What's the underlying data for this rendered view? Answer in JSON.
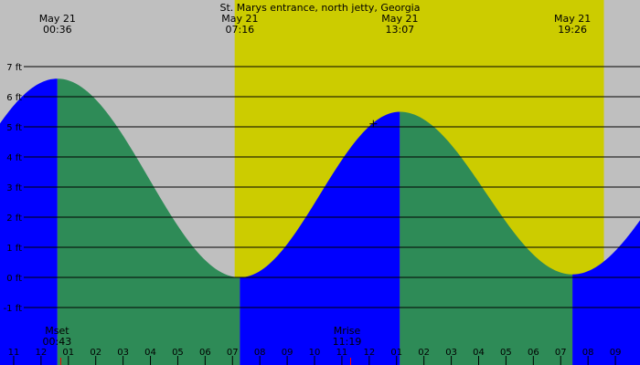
{
  "chart_data": {
    "type": "area",
    "title": "St. Marys entrance, north jetty, Georgia",
    "unit": "ft",
    "yticks": [
      -1,
      0,
      1,
      2,
      3,
      4,
      5,
      6,
      7
    ],
    "ytick_labels": [
      "-1 ft",
      "0 ft",
      "1 ft",
      "2 ft",
      "3 ft",
      "4 ft",
      "5 ft",
      "6 ft",
      "7 ft"
    ],
    "ylim": [
      -1.5,
      7.5
    ],
    "x_range_hours": [
      -1.5,
      21.9
    ],
    "hour_ticks": [
      {
        "h": -1,
        "label": "11"
      },
      {
        "h": 0,
        "label": "12"
      },
      {
        "h": 1,
        "label": "01"
      },
      {
        "h": 2,
        "label": "02"
      },
      {
        "h": 3,
        "label": "03"
      },
      {
        "h": 4,
        "label": "04"
      },
      {
        "h": 5,
        "label": "05"
      },
      {
        "h": 6,
        "label": "06"
      },
      {
        "h": 7,
        "label": "07"
      },
      {
        "h": 8,
        "label": "08"
      },
      {
        "h": 9,
        "label": "09"
      },
      {
        "h": 10,
        "label": "10"
      },
      {
        "h": 11,
        "label": "11"
      },
      {
        "h": 12,
        "label": "12"
      },
      {
        "h": 13,
        "label": "01"
      },
      {
        "h": 14,
        "label": "02"
      },
      {
        "h": 15,
        "label": "03"
      },
      {
        "h": 16,
        "label": "04"
      },
      {
        "h": 17,
        "label": "05"
      },
      {
        "h": 18,
        "label": "06"
      },
      {
        "h": 19,
        "label": "07"
      },
      {
        "h": 20,
        "label": "08"
      },
      {
        "h": 21,
        "label": "09"
      }
    ],
    "extremes": [
      {
        "date": "May 21",
        "time": "00:36",
        "h": 0.6,
        "height": 6.6,
        "kind": "high"
      },
      {
        "date": "May 21",
        "time": "07:16",
        "h": 7.27,
        "height": 0.0,
        "kind": "low"
      },
      {
        "date": "May 21",
        "time": "13:07",
        "h": 13.12,
        "height": 5.5,
        "kind": "high"
      },
      {
        "date": "May 21",
        "time": "19:26",
        "h": 19.43,
        "height": 0.1,
        "kind": "low"
      }
    ],
    "curve_start": {
      "h": -1.5,
      "height": 5.3
    },
    "curve_end": {
      "h": 21.9,
      "height": 2.0
    },
    "daylight": {
      "start_h": 7.08,
      "end_h": 20.58
    },
    "current_marker": {
      "h": 12.15,
      "height": 5.1
    },
    "moon_events": [
      {
        "label": "Mset",
        "time": "00:43",
        "h": 0.72
      },
      {
        "label": "Mrise",
        "time": "11:19",
        "h": 11.32
      }
    ],
    "colors": {
      "night": "#bfbfbf",
      "day": "#cccc00",
      "rising": "#0000ff",
      "falling": "#2e8b57",
      "grid": "#000000",
      "marker": "#ff0000"
    }
  }
}
